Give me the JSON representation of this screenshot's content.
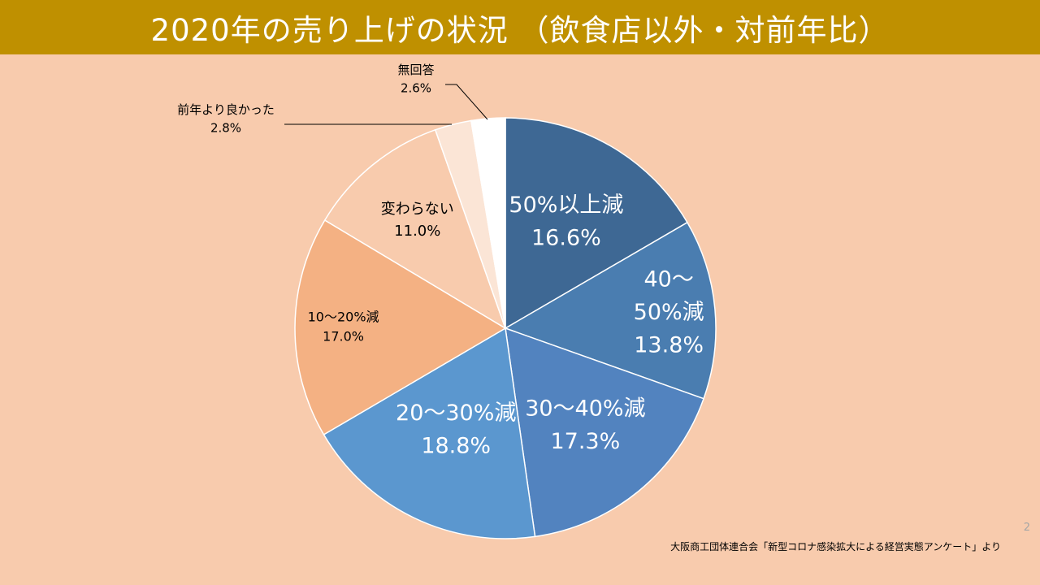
{
  "slide": {
    "title": "2020年の売り上げの状況 （飲食店以外・対前年比）",
    "page_number": "2",
    "source": "大阪商工団体連合会「新型コロナ感染拡大による経営実態アンケート」より"
  },
  "chart_data": {
    "type": "pie",
    "title": "",
    "start": "top",
    "direction": "clockwise",
    "slices": [
      {
        "label": "50%以上減",
        "value": 16.6,
        "display": "16.6%",
        "color": "#3E6894"
      },
      {
        "label": "40～50%減",
        "value": 13.8,
        "display": "13.8%",
        "color": "#4A7DB0"
      },
      {
        "label": "30～40%減",
        "value": 17.3,
        "display": "17.3%",
        "color": "#5283BF"
      },
      {
        "label": "20～30%減",
        "value": 18.8,
        "display": "18.8%",
        "color": "#5B97CF"
      },
      {
        "label": "10～20%減",
        "value": 17.0,
        "display": "17.0%",
        "color": "#F4B183"
      },
      {
        "label": "変わらない",
        "value": 11.0,
        "display": "11.0%",
        "color": "#F8CBAD"
      },
      {
        "label": "前年より良かった",
        "value": 2.8,
        "display": "2.8%",
        "color": "#FBE5D6"
      },
      {
        "label": "無回答",
        "value": 2.6,
        "display": "2.6%",
        "color": "#FFFFFF"
      }
    ]
  }
}
